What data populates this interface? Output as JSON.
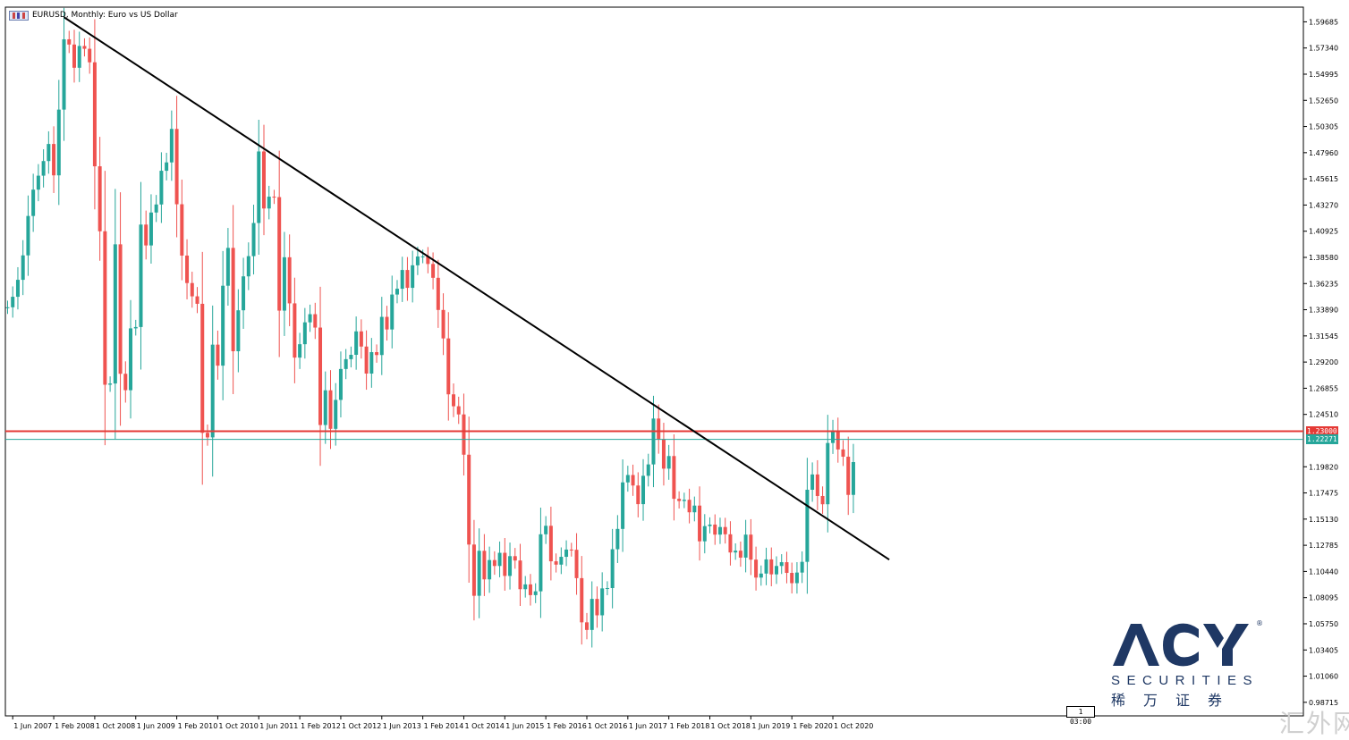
{
  "window": {
    "title": "EURUSD, Monthly:  Euro vs US Dollar"
  },
  "logo": {
    "brand": "ACY",
    "subtitle": "SECURITIES",
    "chinese": "稀万证券",
    "registered": "®"
  },
  "watermark": "汇外网",
  "time_box": "1 03:00",
  "colors": {
    "bull": "#26a69a",
    "bear": "#ef5350",
    "trendline": "#000000",
    "level_red": "#e53935",
    "level_teal": "#26a69a",
    "axis": "#000000",
    "brand": "#1f3864"
  },
  "chart_data": {
    "type": "candlestick",
    "symbol": "EURUSD",
    "timeframe": "Monthly",
    "ylim": [
      0.975,
      1.61
    ],
    "y_ticks": [
      "1.59685",
      "1.57340",
      "1.54995",
      "1.52650",
      "1.50305",
      "1.47960",
      "1.45615",
      "1.43270",
      "1.40925",
      "1.38580",
      "1.36235",
      "1.33890",
      "1.31545",
      "1.29200",
      "1.26855",
      "1.24510",
      "1.19820",
      "1.17475",
      "1.15130",
      "1.12785",
      "1.10440",
      "1.08095",
      "1.05750",
      "1.03405",
      "1.01060",
      "0.98715"
    ],
    "x_ticks": [
      "1 Jun 2007",
      "1 Feb 2008",
      "1 Oct 2008",
      "1 Jun 2009",
      "1 Feb 2010",
      "1 Oct 2010",
      "1 Jun 2011",
      "1 Feb 2012",
      "1 Oct 2012",
      "1 Jun 2013",
      "1 Feb 2014",
      "1 Oct 2014",
      "1 Jun 2015",
      "1 Feb 2016",
      "1 Oct 2016",
      "1 Jun 2017",
      "1 Feb 2018",
      "1 Oct 2018",
      "1 Jun 2019",
      "1 Feb 2020",
      "1 Oct 2020"
    ],
    "horizontal_levels": [
      {
        "value": 1.23,
        "label": "1.23000",
        "color": "#e53935"
      },
      {
        "value": 1.2227,
        "label": "1.22271",
        "color": "#26a69a"
      }
    ],
    "trendline": {
      "from": {
        "date": "2008-04",
        "price": 1.601
      },
      "to": {
        "date": "2021-09",
        "price": 1.115
      }
    },
    "series": [
      {
        "name": "EURUSD",
        "closes": [
          1.3411,
          1.3505,
          1.3657,
          1.3876,
          1.4229,
          1.4465,
          1.459,
          1.4721,
          1.4874,
          1.4593,
          1.5182,
          1.5812,
          1.5765,
          1.5557,
          1.5752,
          1.5727,
          1.5606,
          1.4674,
          1.4092,
          1.2717,
          1.2728,
          1.3975,
          1.2815,
          1.2668,
          1.3222,
          1.3234,
          1.4152,
          1.3965,
          1.426,
          1.4332,
          1.4634,
          1.4709,
          1.5009,
          1.4334,
          1.3874,
          1.3628,
          1.3509,
          1.3442,
          1.2286,
          1.2245,
          1.3076,
          1.2888,
          1.3604,
          1.3943,
          1.3017,
          1.3384,
          1.3688,
          1.3869,
          1.4166,
          1.4807,
          1.4296,
          1.4402,
          1.4398,
          1.3381,
          1.3859,
          1.3446,
          1.296,
          1.308,
          1.3276,
          1.3349,
          1.3229,
          1.2356,
          1.2667,
          1.2322,
          1.2581,
          1.2858,
          1.2946,
          1.2985,
          1.3195,
          1.3059,
          1.2817,
          1.3009,
          1.2983,
          1.3325,
          1.3212,
          1.3525,
          1.3577,
          1.3745,
          1.3585,
          1.3787,
          1.3866,
          1.3867,
          1.3799,
          1.3675,
          1.3387,
          1.3132,
          1.2631,
          1.2524,
          1.2451,
          1.209,
          1.1285,
          1.0826,
          1.1229,
          1.0973,
          1.1146,
          1.1093,
          1.1211,
          1.1004,
          1.1181,
          1.1142,
          1.0885,
          1.0928,
          1.0832,
          1.0866,
          1.1377,
          1.1453,
          1.1135,
          1.1105,
          1.1175,
          1.124,
          1.1238,
          1.0984,
          1.0588,
          1.052,
          1.0798,
          1.0651,
          1.0892,
          1.0895,
          1.1243,
          1.1425,
          1.1842,
          1.1908,
          1.1814,
          1.1647,
          1.1901,
          1.2003,
          1.2414,
          1.2225,
          1.1965,
          1.2078,
          1.1695,
          1.1675,
          1.1686,
          1.1574,
          1.1634,
          1.1314,
          1.145,
          1.1464,
          1.1374,
          1.1442,
          1.1377,
          1.1214,
          1.123,
          1.1168,
          1.1374,
          1.115,
          1.0989,
          1.1025,
          1.1152,
          1.1018,
          1.1093,
          1.1127,
          1.1031,
          1.0939,
          1.1034,
          1.113,
          1.1776,
          1.1913,
          1.172,
          1.1646,
          1.2195,
          1.2304,
          1.2137,
          1.2072,
          1.173,
          1.2024
        ]
      }
    ]
  }
}
